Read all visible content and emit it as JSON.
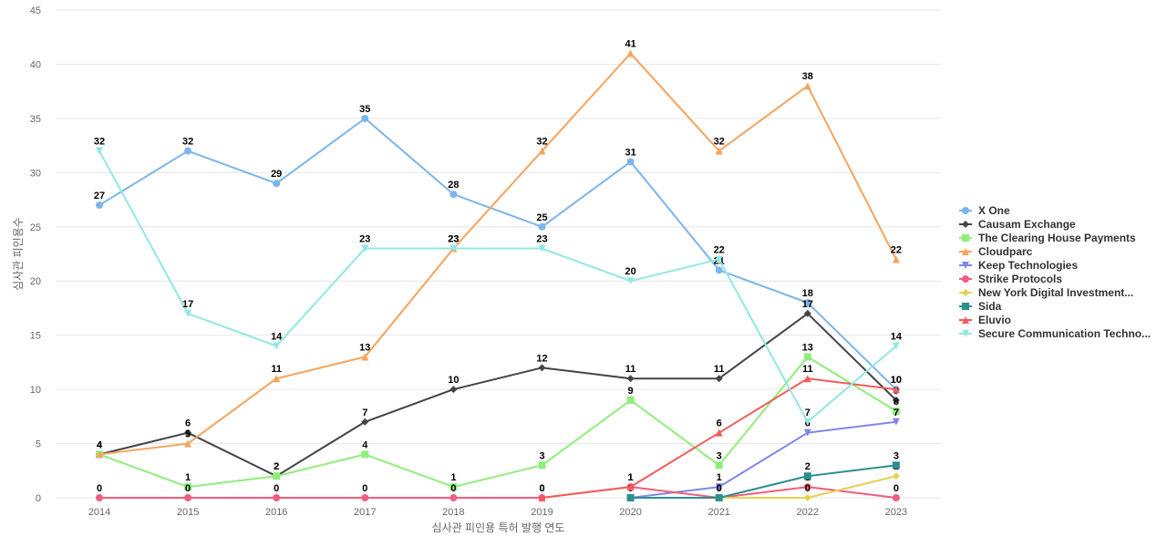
{
  "chart_data": {
    "type": "line",
    "title": "",
    "xlabel": "심사관 피인용 특허 발행 연도",
    "ylabel": "심사관 피인용수",
    "ylim": [
      0,
      45
    ],
    "yticks": [
      0,
      5,
      10,
      15,
      20,
      25,
      30,
      35,
      40,
      45
    ],
    "x": [
      "2014",
      "2015",
      "2016",
      "2017",
      "2018",
      "2019",
      "2020",
      "2021",
      "2022",
      "2023"
    ],
    "grid": true,
    "legend_position": "right",
    "series": [
      {
        "name": "X One",
        "color": "#7cb5ec",
        "marker": "circle",
        "values": [
          27,
          32,
          29,
          35,
          28,
          25,
          31,
          21,
          18,
          10
        ]
      },
      {
        "name": "Causam Exchange",
        "color": "#434348",
        "marker": "diamond",
        "values": [
          4,
          6,
          2,
          7,
          10,
          12,
          11,
          11,
          17,
          9
        ]
      },
      {
        "name": "The Clearing House Payments",
        "color": "#90ed7d",
        "marker": "square",
        "values": [
          4,
          1,
          2,
          4,
          1,
          3,
          9,
          3,
          13,
          8
        ]
      },
      {
        "name": "Cloudparc",
        "color": "#f7a35c",
        "marker": "triangle",
        "values": [
          4,
          5,
          11,
          13,
          23,
          32,
          41,
          32,
          38,
          22
        ]
      },
      {
        "name": "Keep Technologies",
        "color": "#8085e9",
        "marker": "triangle-down",
        "values": [
          null,
          null,
          null,
          null,
          null,
          null,
          0,
          1,
          6,
          7
        ]
      },
      {
        "name": "Strike Protocols",
        "color": "#f15c80",
        "marker": "circle",
        "values": [
          0,
          0,
          0,
          0,
          0,
          0,
          1,
          0,
          1,
          0
        ]
      },
      {
        "name": "New York Digital Investment...",
        "color": "#e4d354",
        "marker": "diamond",
        "values": [
          null,
          null,
          null,
          null,
          null,
          null,
          null,
          0,
          0,
          2
        ]
      },
      {
        "name": "Sida",
        "color": "#2b908f",
        "marker": "square",
        "values": [
          null,
          null,
          null,
          null,
          null,
          null,
          0,
          0,
          2,
          3
        ]
      },
      {
        "name": "Eluvio",
        "color": "#f45b5b",
        "marker": "triangle",
        "values": [
          null,
          null,
          null,
          null,
          null,
          0,
          1,
          6,
          11,
          10
        ]
      },
      {
        "name": "Secure Communication Techno...",
        "color": "#91e8e1",
        "marker": "triangle-down",
        "values": [
          32,
          17,
          14,
          23,
          23,
          23,
          20,
          22,
          7,
          14
        ]
      }
    ]
  }
}
